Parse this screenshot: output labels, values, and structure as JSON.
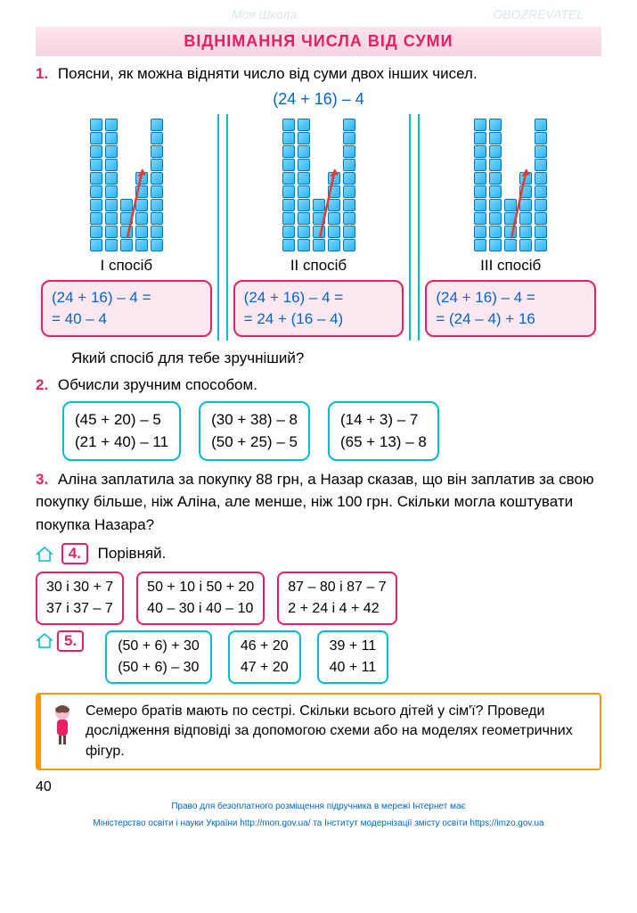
{
  "title": "ВІДНІМАННЯ ЧИСЛА ВІД СУМИ",
  "watermarks": [
    "Моя Школа",
    "OBOZREVATEL"
  ],
  "task1": {
    "num": "1.",
    "text": "Поясни, як можна відняти число від суми двох інших чисел.",
    "top_expr": "(24 + 16) – 4",
    "panels": [
      {
        "cols": [
          10,
          10,
          4,
          6,
          10
        ],
        "label": "I спосіб",
        "formula": "(24 + 16) – 4 =\n= 40 – 4"
      },
      {
        "cols": [
          10,
          10,
          4,
          6,
          10
        ],
        "label": "II спосіб",
        "formula": "(24 + 16) – 4 =\n= 24 + (16 – 4)"
      },
      {
        "cols": [
          10,
          10,
          4,
          6,
          10
        ],
        "label": "III спосіб",
        "formula": "(24 + 16) – 4 =\n= (24 – 4) + 16"
      }
    ],
    "follow": "Який спосіб для тебе зручніший?"
  },
  "task2": {
    "num": "2.",
    "text": "Обчисли зручним способом.",
    "boxes": [
      [
        "(45 + 20) – 5",
        "(21 + 40) – 11"
      ],
      [
        "(30 + 38) – 8",
        "(50 + 25) – 5"
      ],
      [
        "(14 + 3) – 7",
        "(65 + 13) – 8"
      ]
    ]
  },
  "task3": {
    "num": "3.",
    "text": "Аліна заплатила за покупку 88 грн, а Назар сказав, що він заплатив за свою покупку більше, ніж Аліна, але менше, ніж 100 грн. Скільки могла коштувати покупка Назара?"
  },
  "task4": {
    "num": "4.",
    "text": "Порівняй.",
    "boxes": [
      [
        "30 і 30 + 7",
        "37 і 37 – 7"
      ],
      [
        "50 + 10 і 50 + 20",
        "40 – 30 і 40 – 10"
      ],
      [
        "87 – 80 і 87 – 7",
        "2 + 24 і 4 + 42"
      ]
    ]
  },
  "task5": {
    "num": "5.",
    "boxes": [
      [
        "(50 + 6) + 30",
        "(50 + 6) – 30"
      ],
      [
        "46 + 20",
        "47 + 20"
      ],
      [
        "39 + 11",
        "40 + 11"
      ]
    ]
  },
  "riddle": "Семеро братів мають по сестрі. Скільки всього дітей у сім'ї? Проведи дослідження відповіді за допомогою схеми або на моделях геометричних фігур.",
  "page_num": "40",
  "footer1": "Право для безоплатного розміщення підручника в мережі Інтернет має",
  "footer2": "Міністерство освіти і науки України http://mon.gov.ua/ та Інститут модернізації змісту освіти https://imzo.gov.ua"
}
